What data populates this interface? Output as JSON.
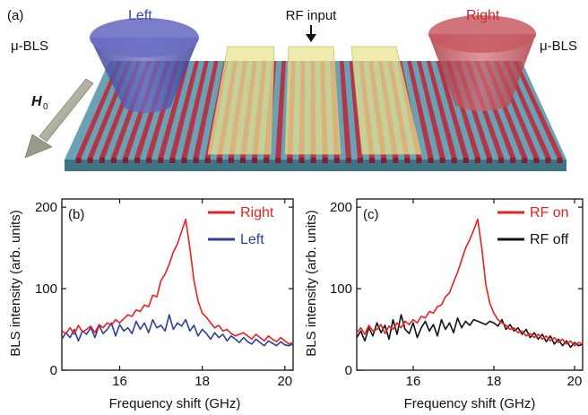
{
  "diagram": {
    "panel_label": "(a)",
    "left_label": "Left",
    "right_label": "Right",
    "left_mbls": "μ-BLS",
    "right_mbls": "μ-BLS",
    "rf_input": "RF input",
    "h_field": "H",
    "h_subscript": "0",
    "colors": {
      "left": "#4c4fa6",
      "right": "#c0383f",
      "substrate": "#5d97a8",
      "stripe": "#b3354a",
      "antenna": "#e6e08a"
    }
  },
  "chart_data": [
    {
      "type": "line",
      "panel_label": "(b)",
      "xlabel": "Frequency shift (GHz)",
      "ylabel": "BLS intensity (arb. units)",
      "xlim": [
        14.6,
        20.2
      ],
      "ylim": [
        0,
        210
      ],
      "xticks": [
        16,
        18,
        20
      ],
      "yticks": [
        0,
        100,
        200
      ],
      "legend_position": "top-right",
      "series": [
        {
          "name": "Right",
          "color": "#e8211f",
          "x": [
            14.6,
            14.7,
            14.8,
            14.9,
            15.0,
            15.1,
            15.2,
            15.3,
            15.4,
            15.5,
            15.6,
            15.7,
            15.8,
            15.9,
            16.0,
            16.1,
            16.2,
            16.3,
            16.4,
            16.5,
            16.6,
            16.7,
            16.8,
            16.9,
            17.0,
            17.1,
            17.2,
            17.3,
            17.4,
            17.5,
            17.6,
            17.7,
            17.8,
            17.9,
            18.0,
            18.1,
            18.2,
            18.3,
            18.4,
            18.5,
            18.6,
            18.7,
            18.8,
            18.9,
            19.0,
            19.1,
            19.2,
            19.3,
            19.4,
            19.5,
            19.6,
            19.7,
            19.8,
            19.9,
            20.0,
            20.1,
            20.2
          ],
          "values": [
            48,
            45,
            52,
            44,
            55,
            47,
            50,
            54,
            46,
            56,
            52,
            58,
            55,
            62,
            58,
            63,
            68,
            66,
            74,
            72,
            80,
            78,
            92,
            90,
            110,
            118,
            130,
            145,
            155,
            170,
            185,
            150,
            110,
            85,
            70,
            65,
            58,
            52,
            55,
            48,
            50,
            45,
            42,
            44,
            46,
            42,
            38,
            44,
            40,
            36,
            42,
            38,
            35,
            40,
            36,
            32,
            34
          ]
        },
        {
          "name": "Left",
          "color": "#2f3f9a",
          "x": [
            14.6,
            14.7,
            14.8,
            14.9,
            15.0,
            15.1,
            15.2,
            15.3,
            15.4,
            15.5,
            15.6,
            15.7,
            15.8,
            15.9,
            16.0,
            16.1,
            16.2,
            16.3,
            16.4,
            16.5,
            16.6,
            16.7,
            16.8,
            16.9,
            17.0,
            17.1,
            17.2,
            17.3,
            17.4,
            17.5,
            17.6,
            17.7,
            17.8,
            17.9,
            18.0,
            18.1,
            18.2,
            18.3,
            18.4,
            18.5,
            18.6,
            18.7,
            18.8,
            18.9,
            19.0,
            19.1,
            19.2,
            19.3,
            19.4,
            19.5,
            19.6,
            19.7,
            19.8,
            19.9,
            20.0,
            20.1,
            20.2
          ],
          "values": [
            38,
            46,
            40,
            50,
            36,
            48,
            44,
            52,
            40,
            55,
            45,
            50,
            58,
            42,
            56,
            48,
            52,
            45,
            60,
            50,
            58,
            46,
            62,
            52,
            55,
            48,
            68,
            50,
            58,
            54,
            62,
            48,
            55,
            42,
            50,
            45,
            38,
            46,
            40,
            44,
            36,
            42,
            38,
            34,
            40,
            35,
            32,
            38,
            34,
            30,
            36,
            33,
            30,
            35,
            31,
            30,
            32
          ]
        }
      ]
    },
    {
      "type": "line",
      "panel_label": "(c)",
      "xlabel": "Frequency shift (GHz)",
      "ylabel": "BLS intensity (arb. units)",
      "xlim": [
        14.6,
        20.2
      ],
      "ylim": [
        0,
        210
      ],
      "xticks": [
        16,
        18,
        20
      ],
      "yticks": [
        0,
        100,
        200
      ],
      "legend_position": "top-right",
      "series": [
        {
          "name": "RF on",
          "color": "#e8211f",
          "x": [
            14.6,
            14.7,
            14.8,
            14.9,
            15.0,
            15.1,
            15.2,
            15.3,
            15.4,
            15.5,
            15.6,
            15.7,
            15.8,
            15.9,
            16.0,
            16.1,
            16.2,
            16.3,
            16.4,
            16.5,
            16.6,
            16.7,
            16.8,
            16.9,
            17.0,
            17.1,
            17.2,
            17.3,
            17.4,
            17.5,
            17.6,
            17.7,
            17.8,
            17.9,
            18.0,
            18.1,
            18.2,
            18.3,
            18.4,
            18.5,
            18.6,
            18.7,
            18.8,
            18.9,
            19.0,
            19.1,
            19.2,
            19.3,
            19.4,
            19.5,
            19.6,
            19.7,
            19.8,
            19.9,
            20.0,
            20.1,
            20.2
          ],
          "values": [
            46,
            52,
            44,
            55,
            48,
            50,
            56,
            45,
            54,
            50,
            58,
            52,
            60,
            56,
            62,
            58,
            66,
            64,
            72,
            70,
            78,
            80,
            90,
            95,
            108,
            120,
            135,
            150,
            160,
            172,
            185,
            150,
            105,
            82,
            70,
            62,
            58,
            55,
            50,
            52,
            46,
            48,
            42,
            45,
            40,
            44,
            38,
            42,
            36,
            40,
            34,
            38,
            32,
            36,
            30,
            34,
            32
          ]
        },
        {
          "name": "RF off",
          "color": "#111111",
          "x": [
            14.6,
            14.7,
            14.8,
            14.9,
            15.0,
            15.1,
            15.2,
            15.3,
            15.4,
            15.5,
            15.6,
            15.7,
            15.8,
            15.9,
            16.0,
            16.1,
            16.2,
            16.3,
            16.4,
            16.5,
            16.6,
            16.7,
            16.8,
            16.9,
            17.0,
            17.1,
            17.2,
            17.3,
            17.4,
            17.5,
            17.6,
            17.7,
            17.8,
            17.9,
            18.0,
            18.1,
            18.2,
            18.3,
            18.4,
            18.5,
            18.6,
            18.7,
            18.8,
            18.9,
            19.0,
            19.1,
            19.2,
            19.3,
            19.4,
            19.5,
            19.6,
            19.7,
            19.8,
            19.9,
            20.0,
            20.1,
            20.2
          ],
          "values": [
            40,
            48,
            36,
            52,
            42,
            58,
            46,
            55,
            38,
            62,
            44,
            68,
            50,
            45,
            58,
            40,
            52,
            60,
            48,
            56,
            42,
            62,
            50,
            58,
            46,
            64,
            52,
            60,
            55,
            62,
            60,
            58,
            56,
            60,
            58,
            54,
            62,
            50,
            56,
            48,
            52,
            44,
            50,
            40,
            46,
            38,
            44,
            35,
            42,
            32,
            38,
            30,
            36,
            28,
            34,
            30,
            32
          ]
        }
      ]
    }
  ]
}
